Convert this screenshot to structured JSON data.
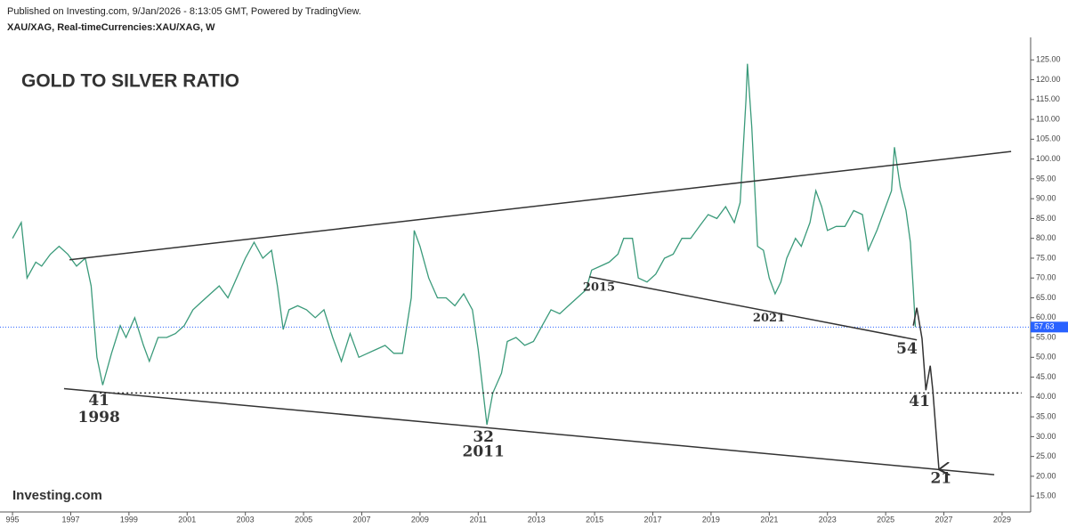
{
  "header": {
    "published": "Published on Investing.com, 9/Jan/2026 - 8:13:05 GMT, Powered by TradingView.",
    "symbol": "XAU/XAG, Real-timeCurrencies:XAU/XAG, W"
  },
  "logo": "Investing.com",
  "chart_data": {
    "type": "line",
    "title": "GOLD TO SILVER RATIO",
    "color": "#3a9a7a",
    "x": [
      1995.0,
      1995.3,
      1995.5,
      1995.8,
      1996.0,
      1996.3,
      1996.6,
      1996.9,
      1997.2,
      1997.5,
      1997.7,
      1997.9,
      1998.1,
      1998.4,
      1998.7,
      1998.9,
      1999.2,
      1999.5,
      1999.7,
      2000.0,
      2000.3,
      2000.6,
      2000.9,
      2001.2,
      2001.5,
      2001.8,
      2002.1,
      2002.4,
      2002.7,
      2003.0,
      2003.3,
      2003.6,
      2003.9,
      2004.1,
      2004.3,
      2004.5,
      2004.8,
      2005.1,
      2005.4,
      2005.7,
      2006.0,
      2006.3,
      2006.6,
      2006.9,
      2007.2,
      2007.5,
      2007.8,
      2008.1,
      2008.4,
      2008.7,
      2008.8,
      2009.0,
      2009.3,
      2009.6,
      2009.9,
      2010.2,
      2010.5,
      2010.8,
      2011.0,
      2011.3,
      2011.5,
      2011.8,
      2012.0,
      2012.3,
      2012.6,
      2012.9,
      2013.2,
      2013.5,
      2013.8,
      2014.1,
      2014.4,
      2014.7,
      2014.9,
      2015.2,
      2015.5,
      2015.8,
      2016.0,
      2016.3,
      2016.5,
      2016.8,
      2017.1,
      2017.4,
      2017.7,
      2018.0,
      2018.3,
      2018.6,
      2018.9,
      2019.2,
      2019.5,
      2019.8,
      2020.0,
      2020.2,
      2020.25,
      2020.4,
      2020.6,
      2020.8,
      2021.0,
      2021.2,
      2021.4,
      2021.6,
      2021.9,
      2022.1,
      2022.4,
      2022.6,
      2022.8,
      2023.0,
      2023.3,
      2023.6,
      2023.9,
      2024.2,
      2024.4,
      2024.7,
      2025.0,
      2025.2,
      2025.3,
      2025.5,
      2025.7,
      2025.85,
      2025.95,
      2026.02
    ],
    "values": [
      80,
      84,
      70,
      74,
      73,
      76,
      78,
      76,
      73,
      75,
      68,
      50,
      43,
      51,
      58,
      55,
      60,
      53,
      49,
      55,
      55,
      56,
      58,
      62,
      64,
      66,
      68,
      65,
      70,
      75,
      79,
      75,
      77,
      68,
      57,
      62,
      63,
      62,
      60,
      62,
      55,
      49,
      56,
      50,
      51,
      52,
      53,
      51,
      51,
      65,
      82,
      78,
      70,
      65,
      65,
      63,
      66,
      62,
      52,
      33,
      41,
      46,
      54,
      55,
      53,
      54,
      58,
      62,
      61,
      63,
      65,
      67,
      72,
      73,
      74,
      76,
      80,
      80,
      70,
      69,
      71,
      75,
      76,
      80,
      80,
      83,
      86,
      85,
      88,
      84,
      89,
      115,
      124,
      108,
      78,
      77,
      70,
      66,
      69,
      75,
      80,
      78,
      84,
      92,
      88,
      82,
      83,
      83,
      87,
      86,
      77,
      82,
      88,
      92,
      103,
      93,
      87,
      79,
      67,
      57.63
    ],
    "last_price": 57.63,
    "xlim": [
      1994.57,
      2029.98
    ],
    "ylim": [
      11,
      130
    ],
    "xticks": [
      {
        "value": 1995,
        "label": "995"
      },
      1997,
      1999,
      2001,
      2003,
      2005,
      2007,
      2009,
      2011,
      2013,
      2015,
      2017,
      2019,
      2021,
      2023,
      2025,
      2027,
      2029
    ],
    "yticks": [
      {
        "value": 15,
        "label": "15.00"
      },
      {
        "value": 20,
        "label": "20.00"
      },
      {
        "value": 25,
        "label": "25.00"
      },
      {
        "value": 30,
        "label": "30.00"
      },
      {
        "value": 35,
        "label": "35.00"
      },
      {
        "value": 40,
        "label": "40.00"
      },
      {
        "value": 45,
        "label": "45.00"
      },
      {
        "value": 50,
        "label": "50.00"
      },
      {
        "value": 55,
        "label": "55.00"
      },
      {
        "value": 60,
        "label": "60.00"
      },
      {
        "value": 65,
        "label": "65.00"
      },
      {
        "value": 70,
        "label": "70.00"
      },
      {
        "value": 75,
        "label": "75.00"
      },
      {
        "value": 80,
        "label": "80.00"
      },
      {
        "value": 85,
        "label": "85.00"
      },
      {
        "value": 90,
        "label": "90.00"
      },
      {
        "value": 95,
        "label": "95.00"
      },
      {
        "value": 100,
        "label": "100.00"
      },
      {
        "value": 105,
        "label": "105.00"
      },
      {
        "value": 110,
        "label": "110.00"
      },
      {
        "value": 115,
        "label": "115.00"
      },
      {
        "value": 120,
        "label": "120.00"
      },
      {
        "value": 125,
        "label": "125.00"
      }
    ],
    "trendlines": [
      {
        "x": [
          1996.96,
          2029.31
        ],
        "y": [
          74.6,
          101.9
        ]
      },
      {
        "x": [
          1996.77,
          2028.73
        ],
        "y": [
          42.1,
          20.4
        ]
      },
      {
        "x": [
          2014.82,
          2026.07
        ],
        "y": [
          70.3,
          54.4
        ]
      }
    ],
    "support_level": {
      "value": 41,
      "x": [
        1998.0,
        2029.67
      ]
    },
    "projection": {
      "x": [
        2025.95,
        2026.07,
        2026.25,
        2026.38,
        2026.53,
        2026.62,
        2026.83
      ],
      "y": [
        58.0,
        62.5,
        54.7,
        41.7,
        47.9,
        41.7,
        21.7
      ]
    },
    "annotations": [
      {
        "text": "41",
        "x": 1997.97,
        "y": 39.0,
        "size": "big"
      },
      {
        "text": "1998",
        "x": 1997.97,
        "y": 34.7,
        "size": "big"
      },
      {
        "text": "32",
        "x": 2011.18,
        "y": 29.8,
        "size": "big"
      },
      {
        "text": "2011",
        "x": 2011.18,
        "y": 26.0,
        "size": "big"
      },
      {
        "text": "2015",
        "x": 2015.15,
        "y": 67.6,
        "size": "small"
      },
      {
        "text": "2021",
        "x": 2020.99,
        "y": 59.8,
        "size": "small"
      },
      {
        "text": "54",
        "x": 2025.73,
        "y": 52.0,
        "size": "big"
      },
      {
        "text": "41",
        "x": 2026.16,
        "y": 38.7,
        "size": "big"
      },
      {
        "text": "21",
        "x": 2026.9,
        "y": 19.3,
        "size": "big"
      }
    ]
  }
}
